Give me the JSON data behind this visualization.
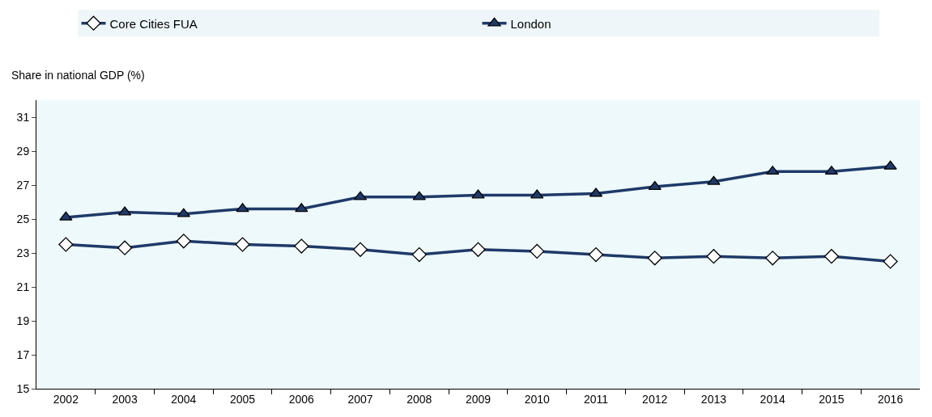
{
  "chart_data": {
    "type": "line",
    "ylabel": "Share in national GDP (%)",
    "categories": [
      "2002",
      "2003",
      "2004",
      "2005",
      "2006",
      "2007",
      "2008",
      "2009",
      "2010",
      "2011",
      "2012",
      "2013",
      "2014",
      "2015",
      "2016"
    ],
    "series": [
      {
        "name": "Core Cities FUA",
        "color": "#1f3a68",
        "marker": "diamond",
        "values": [
          23.5,
          23.3,
          23.7,
          23.5,
          23.4,
          23.2,
          22.9,
          23.2,
          23.1,
          22.9,
          22.7,
          22.8,
          22.7,
          22.8,
          22.5
        ]
      },
      {
        "name": "London",
        "color": "#1f3a68",
        "marker": "triangle",
        "values": [
          25.1,
          25.4,
          25.3,
          25.6,
          25.6,
          26.3,
          26.3,
          26.4,
          26.4,
          26.5,
          26.9,
          27.2,
          27.8,
          27.8,
          28.1
        ]
      }
    ],
    "ylim": [
      15,
      32
    ],
    "yticks": [
      15,
      17,
      19,
      21,
      23,
      25,
      27,
      29,
      31
    ],
    "grid": false,
    "legend": "top",
    "line_style": "solid"
  }
}
